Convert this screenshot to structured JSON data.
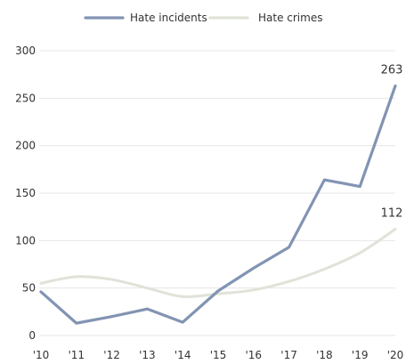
{
  "chart_data": {
    "type": "line",
    "x": [
      "'10",
      "'11",
      "'12",
      "'13",
      "'14",
      "'15",
      "'16",
      "'17",
      "'18",
      "'19",
      "'20"
    ],
    "series": [
      {
        "name": "Hate incidents",
        "color": "#8294b3",
        "values": [
          46,
          13,
          20,
          28,
          14,
          47,
          71,
          93,
          164,
          157,
          263
        ],
        "labels": [
          {
            "index": 10,
            "text": "263"
          }
        ]
      },
      {
        "name": "Hate crimes",
        "color": "#dfe3d8",
        "values": [
          55,
          62,
          59,
          50,
          41,
          44,
          48,
          57,
          70,
          87,
          112
        ],
        "labels": [
          {
            "index": 10,
            "text": "112"
          }
        ]
      }
    ],
    "y_ticks": [
      "0",
      "50",
      "100",
      "150",
      "200",
      "250",
      "300"
    ],
    "ylim": [
      0,
      300
    ],
    "grid": true,
    "legend_position": "top"
  }
}
